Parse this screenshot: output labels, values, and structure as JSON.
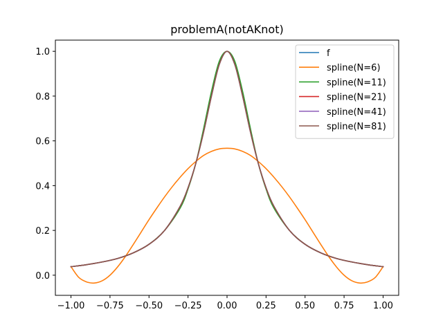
{
  "chart_data": {
    "type": "line",
    "title": "problemA(notAKnot)",
    "xlabel": "",
    "ylabel": "",
    "xlim": [
      -1.1,
      1.1
    ],
    "ylim": [
      -0.09,
      1.05
    ],
    "x_ticks": [
      -1.0,
      -0.75,
      -0.5,
      -0.25,
      0.0,
      0.25,
      0.5,
      0.75,
      1.0
    ],
    "x_tick_labels": [
      "−1.00",
      "−0.75",
      "−0.50",
      "−0.25",
      "0.00",
      "0.25",
      "0.50",
      "0.75",
      "1.00"
    ],
    "y_ticks": [
      0.0,
      0.2,
      0.4,
      0.6,
      0.8,
      1.0
    ],
    "y_tick_labels": [
      "0.0",
      "0.2",
      "0.4",
      "0.6",
      "0.8",
      "1.0"
    ],
    "grid": false,
    "legend_position": "top-right",
    "series": [
      {
        "name": "f",
        "color": "#1f77b4",
        "x": [
          -1.0,
          -0.9,
          -0.8,
          -0.7,
          -0.6,
          -0.5,
          -0.4,
          -0.3,
          -0.25,
          -0.2,
          -0.15,
          -0.1,
          -0.05,
          0.0,
          0.05,
          0.1,
          0.15,
          0.2,
          0.25,
          0.3,
          0.4,
          0.5,
          0.6,
          0.7,
          0.8,
          0.9,
          1.0
        ],
        "values": [
          0.038,
          0.047,
          0.059,
          0.075,
          0.1,
          0.138,
          0.2,
          0.308,
          0.39,
          0.5,
          0.64,
          0.8,
          0.941,
          1.0,
          0.941,
          0.8,
          0.64,
          0.5,
          0.39,
          0.308,
          0.2,
          0.138,
          0.1,
          0.075,
          0.059,
          0.047,
          0.038
        ]
      },
      {
        "name": "spline(N=6)",
        "color": "#ff7f0e",
        "x": [
          -1.0,
          -0.95,
          -0.9,
          -0.85,
          -0.8,
          -0.75,
          -0.7,
          -0.65,
          -0.6,
          -0.55,
          -0.5,
          -0.45,
          -0.4,
          -0.35,
          -0.3,
          -0.25,
          -0.2,
          -0.15,
          -0.1,
          -0.05,
          0.0,
          0.05,
          0.1,
          0.15,
          0.2,
          0.25,
          0.3,
          0.35,
          0.4,
          0.45,
          0.5,
          0.55,
          0.6,
          0.65,
          0.7,
          0.75,
          0.8,
          0.85,
          0.9,
          0.95,
          1.0
        ],
        "values": [
          0.038,
          -0.01,
          -0.03,
          -0.035,
          -0.025,
          0.0,
          0.038,
          0.085,
          0.138,
          0.193,
          0.248,
          0.3,
          0.35,
          0.396,
          0.438,
          0.476,
          0.508,
          0.535,
          0.553,
          0.564,
          0.567,
          0.564,
          0.553,
          0.535,
          0.508,
          0.476,
          0.438,
          0.396,
          0.35,
          0.3,
          0.248,
          0.193,
          0.138,
          0.085,
          0.038,
          0.0,
          -0.025,
          -0.035,
          -0.03,
          -0.01,
          0.038
        ]
      },
      {
        "name": "spline(N=11)",
        "color": "#2ca02c",
        "x": [
          -1.0,
          -0.9,
          -0.8,
          -0.7,
          -0.6,
          -0.5,
          -0.4,
          -0.3,
          -0.25,
          -0.2,
          -0.15,
          -0.1,
          -0.05,
          0.0,
          0.05,
          0.1,
          0.15,
          0.2,
          0.25,
          0.3,
          0.4,
          0.5,
          0.6,
          0.7,
          0.8,
          0.9,
          1.0
        ],
        "values": [
          0.038,
          0.047,
          0.059,
          0.075,
          0.1,
          0.138,
          0.2,
          0.3,
          0.385,
          0.5,
          0.655,
          0.82,
          0.955,
          1.0,
          0.955,
          0.82,
          0.655,
          0.5,
          0.385,
          0.3,
          0.2,
          0.138,
          0.1,
          0.075,
          0.059,
          0.047,
          0.038
        ]
      },
      {
        "name": "spline(N=21)",
        "color": "#d62728",
        "x": [
          -1.0,
          -0.9,
          -0.8,
          -0.7,
          -0.6,
          -0.5,
          -0.4,
          -0.3,
          -0.25,
          -0.2,
          -0.15,
          -0.1,
          -0.05,
          0.0,
          0.05,
          0.1,
          0.15,
          0.2,
          0.25,
          0.3,
          0.4,
          0.5,
          0.6,
          0.7,
          0.8,
          0.9,
          1.0
        ],
        "values": [
          0.038,
          0.047,
          0.059,
          0.075,
          0.1,
          0.138,
          0.2,
          0.308,
          0.39,
          0.5,
          0.64,
          0.8,
          0.941,
          1.0,
          0.941,
          0.8,
          0.64,
          0.5,
          0.39,
          0.308,
          0.2,
          0.138,
          0.1,
          0.075,
          0.059,
          0.047,
          0.038
        ]
      },
      {
        "name": "spline(N=41)",
        "color": "#9467bd",
        "x": [
          -1.0,
          -0.9,
          -0.8,
          -0.7,
          -0.6,
          -0.5,
          -0.4,
          -0.3,
          -0.25,
          -0.2,
          -0.15,
          -0.1,
          -0.05,
          0.0,
          0.05,
          0.1,
          0.15,
          0.2,
          0.25,
          0.3,
          0.4,
          0.5,
          0.6,
          0.7,
          0.8,
          0.9,
          1.0
        ],
        "values": [
          0.038,
          0.047,
          0.059,
          0.075,
          0.1,
          0.138,
          0.2,
          0.308,
          0.39,
          0.5,
          0.64,
          0.8,
          0.941,
          1.0,
          0.941,
          0.8,
          0.64,
          0.5,
          0.39,
          0.308,
          0.2,
          0.138,
          0.1,
          0.075,
          0.059,
          0.047,
          0.038
        ]
      },
      {
        "name": "spline(N=81)",
        "color": "#8c564b",
        "x": [
          -1.0,
          -0.9,
          -0.8,
          -0.7,
          -0.6,
          -0.5,
          -0.4,
          -0.3,
          -0.25,
          -0.2,
          -0.15,
          -0.1,
          -0.05,
          0.0,
          0.05,
          0.1,
          0.15,
          0.2,
          0.25,
          0.3,
          0.4,
          0.5,
          0.6,
          0.7,
          0.8,
          0.9,
          1.0
        ],
        "values": [
          0.038,
          0.047,
          0.059,
          0.075,
          0.1,
          0.138,
          0.2,
          0.308,
          0.39,
          0.5,
          0.64,
          0.8,
          0.941,
          1.0,
          0.941,
          0.8,
          0.64,
          0.5,
          0.39,
          0.308,
          0.2,
          0.138,
          0.1,
          0.075,
          0.059,
          0.047,
          0.038
        ]
      }
    ]
  }
}
